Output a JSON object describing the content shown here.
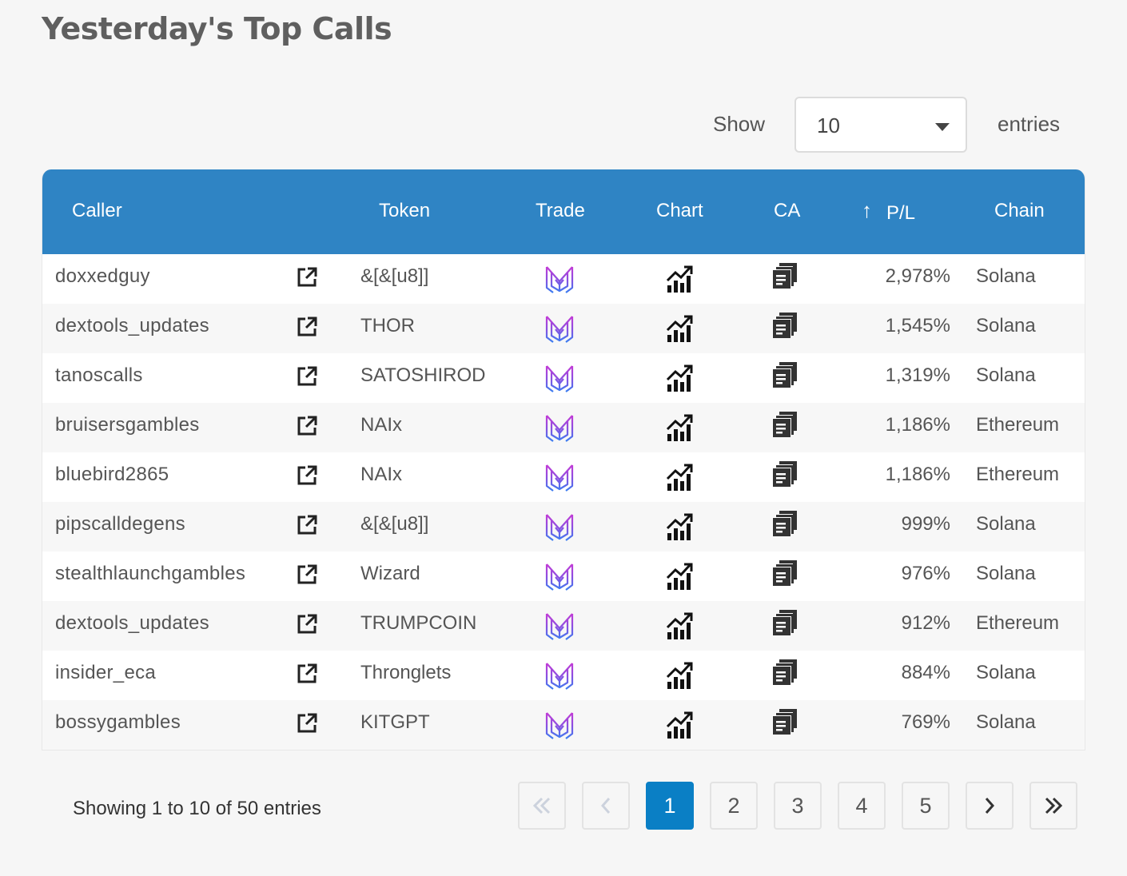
{
  "page": {
    "title": "Yesterday's Top Calls"
  },
  "length_menu": {
    "show_label": "Show",
    "selected": "10",
    "entries_label": "entries"
  },
  "table": {
    "headers": {
      "caller": "Caller",
      "token": "Token",
      "trade": "Trade",
      "chart": "Chart",
      "ca": "CA",
      "pl_arrow": "↑",
      "pl": "P/L",
      "chain": "Chain"
    },
    "rows": [
      {
        "caller": "doxxedguy",
        "token": "&[&[u8]]",
        "pl": "2,978%",
        "chain": "Solana"
      },
      {
        "caller": "dextools_updates",
        "token": "THOR",
        "pl": "1,545%",
        "chain": "Solana"
      },
      {
        "caller": "tanoscalls",
        "token": "SATOSHIROD",
        "pl": "1,319%",
        "chain": "Solana"
      },
      {
        "caller": "bruisersgambles",
        "token": "NAIx",
        "pl": "1,186%",
        "chain": "Ethereum"
      },
      {
        "caller": "bluebird2865",
        "token": "NAIx",
        "pl": "1,186%",
        "chain": "Ethereum"
      },
      {
        "caller": "pipscalldegens",
        "token": "&[&[u8]]",
        "pl": "999%",
        "chain": "Solana"
      },
      {
        "caller": "stealthlaunchgambles",
        "token": "Wizard",
        "pl": "976%",
        "chain": "Solana"
      },
      {
        "caller": "dextools_updates",
        "token": "TRUMPCOIN",
        "pl": "912%",
        "chain": "Ethereum"
      },
      {
        "caller": "insider_eca",
        "token": "Thronglets",
        "pl": "884%",
        "chain": "Solana"
      },
      {
        "caller": "bossygambles",
        "token": "KITGPT",
        "pl": "769%",
        "chain": "Solana"
      }
    ],
    "icons": {
      "link": "external-link-icon",
      "trade": "trade-logo-icon",
      "chart": "chart-icon",
      "ca": "copy-icon"
    }
  },
  "footer": {
    "info": "Showing 1 to 10 of 50 entries",
    "pages": [
      "1",
      "2",
      "3",
      "4",
      "5"
    ],
    "active_page": "1"
  },
  "colors": {
    "header_bg": "#2f84c4",
    "active_page": "#0a7fc5",
    "background": "#f6f6f6"
  }
}
